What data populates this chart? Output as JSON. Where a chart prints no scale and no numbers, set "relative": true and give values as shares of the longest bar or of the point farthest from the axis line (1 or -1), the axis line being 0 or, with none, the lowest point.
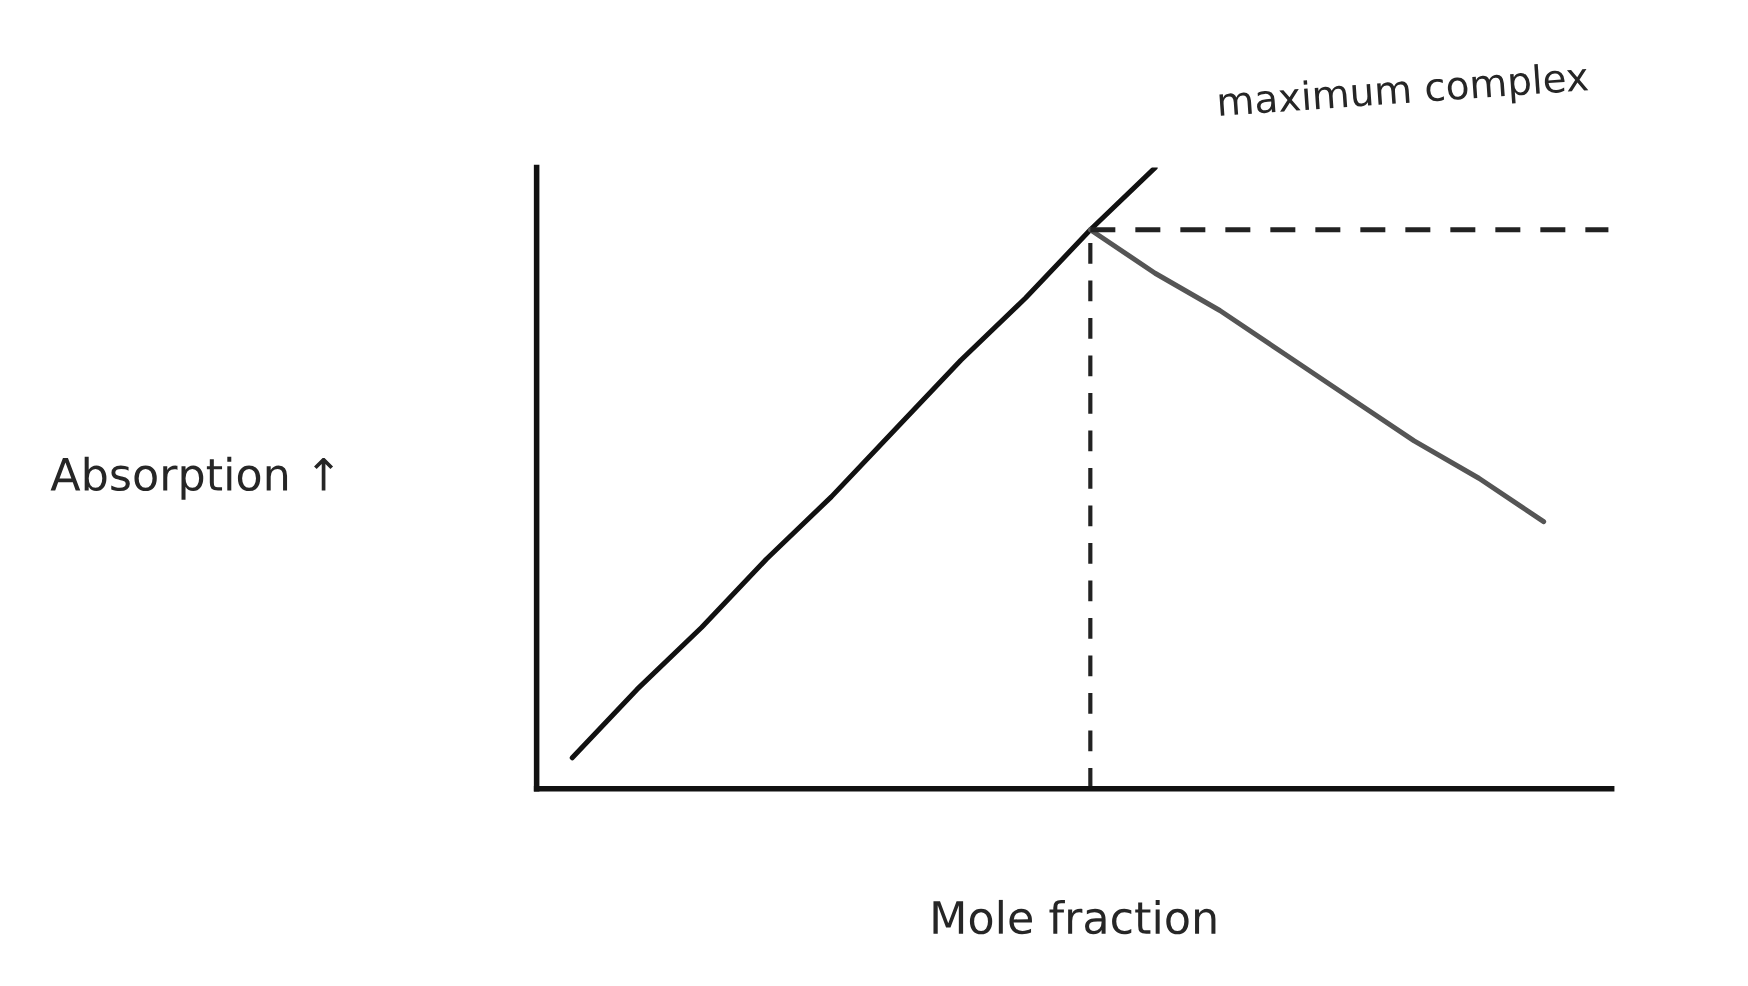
{
  "chart_data": {
    "type": "line",
    "relative": true,
    "xlabel": "Mole fraction",
    "ylabel": "Absorption ↑",
    "categories": [
      null,
      null,
      null,
      null,
      null,
      null,
      null,
      null,
      null,
      null,
      null,
      null,
      null,
      null,
      null,
      null,
      null
    ],
    "series": [
      {
        "color": "#111111",
        "line_style": "solid",
        "values": [
          0.05,
          0.16,
          0.26,
          0.37,
          0.47,
          0.58,
          0.69,
          0.79,
          0.9,
          1.0,
          null,
          null,
          null,
          null,
          null,
          null,
          null
        ]
      },
      {
        "color": "#555555",
        "line_style": "solid",
        "values": [
          null,
          null,
          null,
          null,
          null,
          null,
          null,
          null,
          0.9,
          0.83,
          0.77,
          0.7,
          0.63,
          0.56,
          0.5,
          0.43,
          null
        ]
      },
      {
        "color": "#222222",
        "line_style": "dashed",
        "values": [
          null,
          null,
          null,
          null,
          null,
          null,
          null,
          null,
          0.9,
          0.9,
          0.9,
          0.9,
          0.9,
          0.9,
          0.9,
          0.9,
          0.9
        ]
      }
    ],
    "annotations": [
      "maximum complex"
    ],
    "grid": false,
    "legend": false,
    "tick_labels": false
  }
}
